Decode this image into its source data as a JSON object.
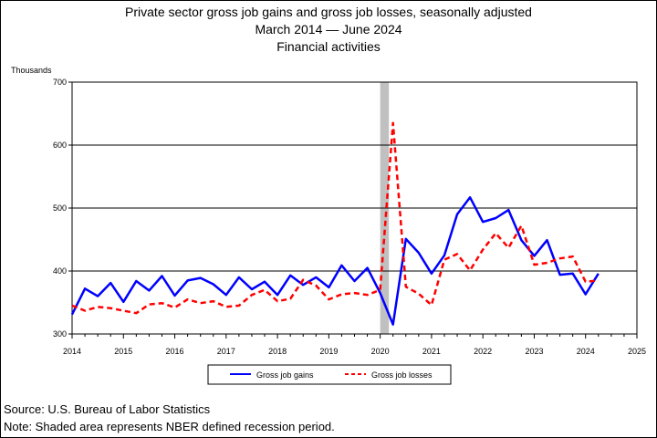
{
  "chart_data": {
    "type": "line",
    "title": "Private sector gross job gains and gross job losses, seasonally adjusted",
    "subtitle": "March 2014 — June 2024",
    "subtitle2": "Financial activities",
    "ylabel": "Thousands",
    "ylim": [
      300,
      700
    ],
    "yticks": [
      300,
      400,
      500,
      600,
      700
    ],
    "xlim": [
      2014,
      2025
    ],
    "xticks": [
      2014,
      2015,
      2016,
      2017,
      2018,
      2019,
      2020,
      2021,
      2022,
      2023,
      2024,
      2025
    ],
    "grid": "horizontal",
    "recession": {
      "start": 2020.0,
      "end": 2020.17,
      "color": "#c0c0c0"
    },
    "series": [
      {
        "name": "Gross job gains",
        "color": "#0000ff",
        "style": "solid",
        "x": [
          2014.0,
          2014.25,
          2014.5,
          2014.75,
          2015.0,
          2015.25,
          2015.5,
          2015.75,
          2016.0,
          2016.25,
          2016.5,
          2016.75,
          2017.0,
          2017.25,
          2017.5,
          2017.75,
          2018.0,
          2018.25,
          2018.5,
          2018.75,
          2019.0,
          2019.25,
          2019.5,
          2019.75,
          2020.0,
          2020.25,
          2020.5,
          2020.75,
          2021.0,
          2021.25,
          2021.5,
          2021.75,
          2022.0,
          2022.25,
          2022.5,
          2022.75,
          2023.0,
          2023.25,
          2023.5,
          2023.75,
          2024.0,
          2024.25
        ],
        "values": [
          331,
          372,
          360,
          381,
          351,
          384,
          369,
          392,
          361,
          385,
          389,
          379,
          362,
          390,
          371,
          383,
          362,
          393,
          378,
          390,
          374,
          409,
          384,
          405,
          365,
          315,
          451,
          429,
          396,
          425,
          490,
          517,
          478,
          484,
          497,
          449,
          424,
          449,
          394,
          396,
          363,
          396
        ]
      },
      {
        "name": "Gross job losses",
        "color": "#ff0000",
        "style": "dashed",
        "x": [
          2014.0,
          2014.25,
          2014.5,
          2014.75,
          2015.0,
          2015.25,
          2015.5,
          2015.75,
          2016.0,
          2016.25,
          2016.5,
          2016.75,
          2017.0,
          2017.25,
          2017.5,
          2017.75,
          2018.0,
          2018.25,
          2018.5,
          2018.75,
          2019.0,
          2019.25,
          2019.5,
          2019.75,
          2020.0,
          2020.25,
          2020.5,
          2020.75,
          2021.0,
          2021.25,
          2021.5,
          2021.75,
          2022.0,
          2022.25,
          2022.5,
          2022.75,
          2023.0,
          2023.25,
          2023.5,
          2023.75,
          2024.0,
          2024.25
        ],
        "values": [
          345,
          337,
          343,
          341,
          337,
          333,
          347,
          349,
          342,
          355,
          349,
          352,
          343,
          345,
          362,
          370,
          352,
          356,
          386,
          377,
          355,
          363,
          365,
          362,
          370,
          635,
          375,
          364,
          346,
          418,
          427,
          401,
          434,
          460,
          437,
          472,
          410,
          413,
          420,
          423,
          383,
          385
        ]
      }
    ],
    "legend": {
      "position": "bottom",
      "labels": [
        "Gross job gains",
        "Gross job losses"
      ]
    }
  },
  "footer": {
    "source": "Source: U.S. Bureau of Labor Statistics",
    "note": "Note: Shaded area represents NBER defined recession period."
  }
}
